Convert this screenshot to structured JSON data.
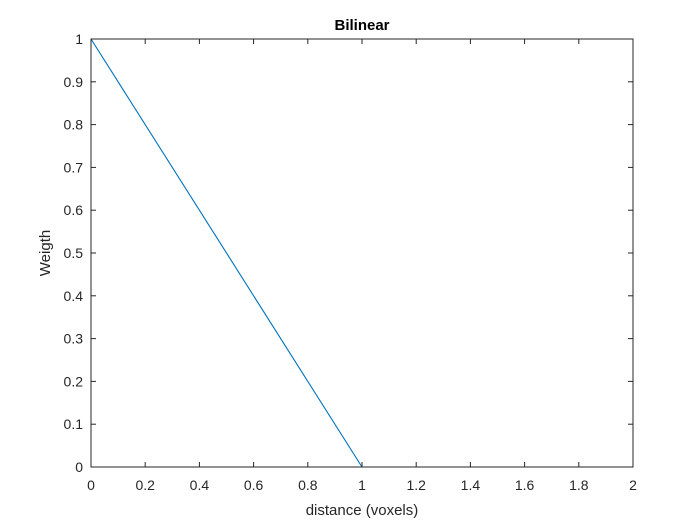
{
  "chart_data": {
    "type": "line",
    "title": "Bilinear",
    "xlabel": "distance (voxels)",
    "ylabel": "Weigth",
    "xlim": [
      0,
      2
    ],
    "ylim": [
      0,
      1
    ],
    "x_ticks": [
      0,
      0.2,
      0.4,
      0.6,
      0.8,
      1,
      1.2,
      1.4,
      1.6,
      1.8,
      2
    ],
    "x_tick_labels": [
      "0",
      "0.2",
      "0.4",
      "0.6",
      "0.8",
      "1",
      "1.2",
      "1.4",
      "1.6",
      "1.8",
      "2"
    ],
    "y_ticks": [
      0,
      0.1,
      0.2,
      0.3,
      0.4,
      0.5,
      0.6,
      0.7,
      0.8,
      0.9,
      1
    ],
    "y_tick_labels": [
      "0",
      "0.1",
      "0.2",
      "0.3",
      "0.4",
      "0.5",
      "0.6",
      "0.7",
      "0.8",
      "0.9",
      "1"
    ],
    "grid": false,
    "series": [
      {
        "color": "#0072BD",
        "x": [
          0,
          1,
          2
        ],
        "y": [
          1,
          0,
          0
        ]
      }
    ]
  }
}
